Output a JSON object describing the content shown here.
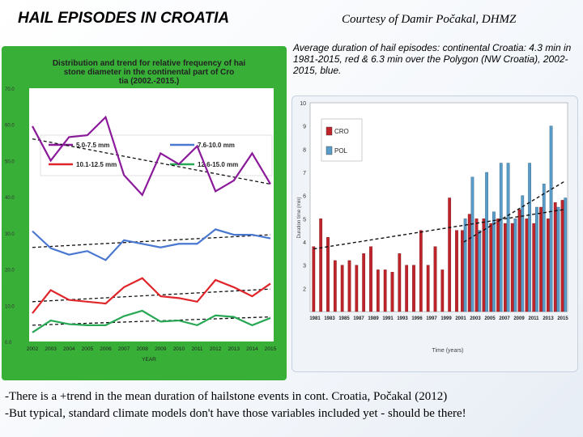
{
  "header": {
    "title": "HAIL EPISODES IN CROATIA",
    "courtesy": "Courtesy of Damir Počakal, DHMZ",
    "note": "Average duration of hail episodes: continental Croatia: 4.3 min in 1981-2015, red & 6.3 min over the Polygon (NW Croatia), 2002-2015, blue."
  },
  "footer": {
    "line1": "-There is a +trend in the mean duration of hailstone events in cont. Croatia, Počakal (2012)",
    "line2": "-But typical, standard climate models don't have those variables included yet - should be there!"
  },
  "chart_data": [
    {
      "type": "line",
      "title": "Distribution and trend for relative frequency of hailstone diameter in the continental part of Croatia (2002.-2015.)",
      "xlabel": "YEAR",
      "ylabel": "",
      "ylim": [
        0,
        70
      ],
      "yticks": [
        "0.0",
        "10.0",
        "20.0",
        "30.0",
        "40.0",
        "50.0",
        "60.0",
        "70.0"
      ],
      "categories": [
        "2002",
        "2003",
        "2004",
        "2005",
        "2006",
        "2007",
        "2008",
        "2009",
        "2010",
        "2011",
        "2012",
        "2013",
        "2014",
        "2015"
      ],
      "legend": "top, inside plot",
      "grid": false,
      "series": [
        {
          "name": "5.0-7.5 mm",
          "color": "#8b1a9b",
          "values": [
            59.5,
            50.0,
            56.5,
            57.0,
            62.0,
            46.0,
            40.5,
            52.0,
            49.0,
            54.0,
            41.5,
            44.5,
            52.0,
            43.5
          ],
          "trend": [
            56.0,
            43.5
          ]
        },
        {
          "name": "7.6-10.0 mm",
          "color": "#4a78d0",
          "values": [
            30.5,
            25.8,
            24.0,
            25.0,
            22.5,
            28.0,
            27.0,
            26.0,
            27.0,
            27.0,
            31.0,
            29.5,
            29.5,
            28.5
          ],
          "trend": [
            26.0,
            29.5
          ]
        },
        {
          "name": "10.1-12.5 mm",
          "color": "#e0252a",
          "values": [
            7.8,
            14.2,
            11.5,
            11.0,
            10.5,
            15.0,
            17.5,
            12.5,
            12.0,
            11.0,
            17.0,
            15.0,
            12.5,
            16.0
          ],
          "trend": [
            11.0,
            14.5
          ]
        },
        {
          "name": "12.6-15.0 mm",
          "color": "#28a855",
          "values": [
            2.5,
            5.8,
            4.8,
            4.5,
            4.5,
            7.0,
            8.5,
            5.5,
            5.8,
            4.5,
            7.2,
            6.8,
            4.5,
            6.5
          ],
          "trend": [
            4.5,
            6.8
          ]
        }
      ]
    },
    {
      "type": "bar",
      "xlabel": "Time (years)",
      "ylabel": "Duration time (min)",
      "ylim": [
        1,
        10
      ],
      "yticks": [
        "2",
        "3",
        "4",
        "5",
        "6",
        "7",
        "8",
        "9",
        "10"
      ],
      "xticks": [
        "1981",
        "1983",
        "1985",
        "1987",
        "1989",
        "1991",
        "1993",
        "1996",
        "1997",
        "1999",
        "2001",
        "2003",
        "2005",
        "2007",
        "2009",
        "2011",
        "2013",
        "2015"
      ],
      "legend": "top-left",
      "categories": [
        "1981",
        "1982",
        "1983",
        "1984",
        "1985",
        "1986",
        "1987",
        "1988",
        "1989",
        "1990",
        "1991",
        "1992",
        "1993",
        "1994",
        "1995",
        "1996",
        "1997",
        "1998",
        "1999",
        "2000",
        "2001",
        "2002",
        "2003",
        "2004",
        "2005",
        "2006",
        "2007",
        "2008",
        "2009",
        "2010",
        "2011",
        "2012",
        "2013",
        "2014",
        "2015",
        "2016"
      ],
      "series": [
        {
          "name": "CRO",
          "color": "#c0242b",
          "values": [
            3.8,
            5.0,
            4.2,
            3.2,
            3.0,
            3.2,
            3.0,
            3.5,
            3.8,
            2.8,
            2.8,
            2.7,
            3.5,
            3.0,
            3.0,
            4.5,
            3.0,
            3.8,
            2.8,
            5.9,
            4.5,
            4.5,
            5.2,
            5.0,
            5.0,
            4.8,
            5.0,
            4.8,
            4.8,
            5.4,
            5.0,
            4.8,
            5.5,
            5.0,
            5.7,
            5.8
          ],
          "trend": [
            3.7,
            5.4
          ]
        },
        {
          "name": "POL",
          "color": "#5a9cc8",
          "values": [
            null,
            null,
            null,
            null,
            null,
            null,
            null,
            null,
            null,
            null,
            null,
            null,
            null,
            null,
            null,
            null,
            null,
            null,
            null,
            null,
            null,
            5.0,
            6.8,
            4.5,
            7.0,
            5.3,
            7.4,
            7.4,
            5.0,
            6.0,
            7.4,
            5.5,
            6.5,
            9.0,
            5.5,
            5.9
          ],
          "trend": [
            4.0,
            6.6
          ]
        }
      ]
    }
  ]
}
